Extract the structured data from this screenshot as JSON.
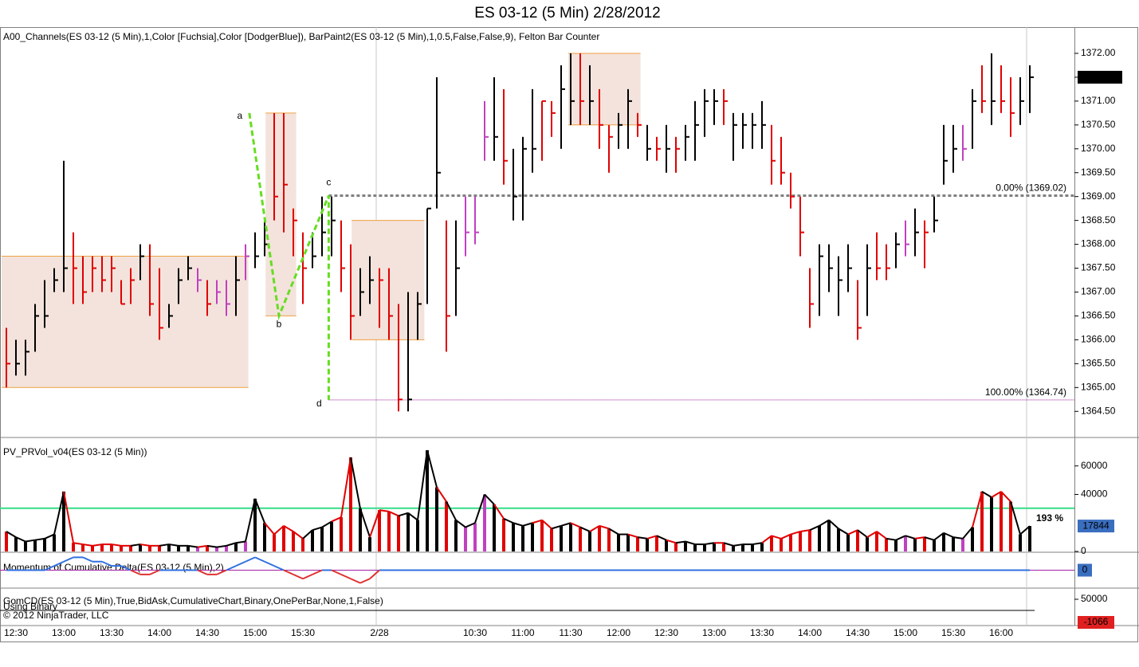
{
  "chart_data": [
    {
      "type": "ohlc",
      "title": "ES 03-12 (5 Min)  2/28/2012",
      "subtitle": "A00_Channels(ES  03-12  (5  Min),1,Color  [Fuchsia],Color  [DodgerBlue]),  BarPaint2(ES  03-12  (5  Min),1,0.5,False,False,9),  Felton  Bar  Counter",
      "categories": [
        null,
        "12:30",
        null,
        null,
        null,
        null,
        "13:00",
        null,
        null,
        null,
        null,
        "13:30",
        null,
        null,
        null,
        null,
        "14:00",
        null,
        null,
        null,
        null,
        "14:30",
        null,
        null,
        null,
        null,
        "15:00",
        null,
        null,
        null,
        null,
        "15:30",
        null,
        null,
        null,
        null,
        null,
        null,
        null,
        "2/28",
        null,
        null,
        null,
        null,
        null,
        null,
        null,
        null,
        null,
        "10:30",
        null,
        null,
        null,
        null,
        "11:00",
        null,
        null,
        null,
        null,
        "11:30",
        null,
        null,
        null,
        null,
        "12:00",
        null,
        null,
        null,
        null,
        "12:30",
        null,
        null,
        null,
        null,
        "13:00",
        null,
        null,
        null,
        null,
        "13:30",
        null,
        null,
        null,
        null,
        "14:00",
        null,
        null,
        null,
        null,
        "14:30",
        null,
        null,
        null,
        null,
        "15:00",
        null,
        null,
        null,
        null,
        "15:30",
        null,
        null,
        null,
        null,
        "16:00",
        null,
        null,
        null
      ],
      "high": [
        1366.25,
        1366,
        1366,
        1366.75,
        1367.25,
        1367.5,
        1369.75,
        1368.25,
        1367.75,
        1367.75,
        1367.75,
        1367.75,
        1367.25,
        1367.5,
        1368,
        1368,
        1367.5,
        1366.75,
        1367.5,
        1367.75,
        1367.5,
        1367.25,
        1367.25,
        1367.25,
        1367.75,
        1368,
        1368.25,
        1368.5,
        1370.75,
        1370.75,
        1368.75,
        1368.25,
        1368.25,
        1369,
        1369,
        1368.5,
        1368,
        1367.5,
        1367.75,
        1367.5,
        1367.5,
        1366.75,
        1367,
        1367,
        1368.75,
        1371.5,
        1368.5,
        1368.5,
        1369,
        1369,
        1371,
        1371.5,
        1371.25,
        1370,
        1370.25,
        1371.25,
        1371,
        1371,
        1371.75,
        1372,
        1372,
        1371.75,
        1371.25,
        1370.5,
        1370.75,
        1371.25,
        1370.75,
        1370.5,
        1370.25,
        1370.5,
        1370.25,
        1370.5,
        1371,
        1371.25,
        1371.25,
        1371.25,
        1370.75,
        1370.75,
        1370.75,
        1371,
        1370.5,
        1370.25,
        1369.5,
        1369,
        1367.5,
        1368,
        1368,
        1367.75,
        1368,
        1367.25,
        1368,
        1368.25,
        1368,
        1368.25,
        1368.5,
        1368.75,
        1368.5,
        1369,
        1370.5,
        1370.5,
        1370.5,
        1371.25,
        1371.75,
        1372,
        1371.75,
        1371.5,
        1371.5,
        1371.75
      ],
      "low": [
        1365,
        1365.25,
        1365.25,
        1365.75,
        1366.25,
        1367,
        1367,
        1366.75,
        1366.75,
        1367,
        1367,
        1367,
        1366.75,
        1366.75,
        1367.25,
        1366.5,
        1366,
        1366.25,
        1366.75,
        1367.25,
        1367,
        1366.5,
        1366.75,
        1366.5,
        1366.5,
        1367.25,
        1367.5,
        1367.75,
        1368.5,
        1368.25,
        1367.75,
        1366.75,
        1367.5,
        1367.75,
        1367.75,
        1367,
        1366,
        1366.5,
        1366.75,
        1366.25,
        1366,
        1364.5,
        1364.5,
        1366,
        1366.75,
        1368.75,
        1365.75,
        1366.5,
        1367.75,
        1368,
        1369.75,
        1369.75,
        1369.25,
        1368.5,
        1368.5,
        1369.5,
        1369.75,
        1370.25,
        1370,
        1370.5,
        1370.5,
        1370.5,
        1370,
        1369.5,
        1370,
        1370,
        1370.25,
        1369.75,
        1369.75,
        1369.5,
        1369.5,
        1369.75,
        1369.75,
        1370.25,
        1370.5,
        1370.5,
        1369.75,
        1370,
        1370,
        1370,
        1369.25,
        1369.25,
        1368.75,
        1367.75,
        1366.25,
        1366.5,
        1367,
        1366.5,
        1367,
        1366,
        1366.5,
        1367.25,
        1367.25,
        1367.5,
        1367.75,
        1367.75,
        1367.5,
        1368.25,
        1369.25,
        1369.5,
        1369.75,
        1370,
        1370.75,
        1370.5,
        1370.75,
        1370.25,
        1370.5,
        1370.75
      ],
      "close": [
        1365.5,
        1365.5,
        1365.75,
        1366.5,
        1366.5,
        1367.25,
        1367.5,
        1367.5,
        1367,
        1367.5,
        1367.25,
        1367.5,
        1366.75,
        1367.25,
        1367.75,
        1366.75,
        1366.25,
        1366.5,
        1367.25,
        1367.5,
        1367.25,
        1366.75,
        1367,
        1366.75,
        1367.25,
        1367.75,
        1367.75,
        1368,
        1369,
        1369.25,
        1368.5,
        1367.5,
        1367.75,
        1368.25,
        1368.5,
        1367.5,
        1366.5,
        1367,
        1367.25,
        1367.25,
        1366.5,
        1364.75,
        1364.75,
        1366.75,
        1368.75,
        1369.5,
        1366.5,
        1367.5,
        1368.25,
        1368.25,
        1370.25,
        1370.25,
        1369.75,
        1369,
        1370,
        1370,
        1371,
        1370.75,
        1371.25,
        1371,
        1371,
        1371,
        1370.5,
        1370.25,
        1370.5,
        1371,
        1370.5,
        1370,
        1370,
        1370,
        1370,
        1370.25,
        1370.5,
        1371,
        1371,
        1371,
        1370.5,
        1370.5,
        1370.5,
        1370.5,
        1369.75,
        1369.5,
        1369,
        1368.25,
        1366.75,
        1367.75,
        1367.5,
        1367.25,
        1367.5,
        1366.25,
        1367.5,
        1367.5,
        1367.5,
        1368,
        1368,
        1368.25,
        1368.25,
        1368.5,
        1369.75,
        1370,
        1370,
        1371,
        1371,
        1371,
        1371,
        1370.75,
        1371,
        1371.5
      ],
      "colors": [
        "#e00000",
        "#000000",
        "#000000",
        "#000000",
        "#000000",
        "#000000",
        "#000000",
        "#e00000",
        "#e00000",
        "#e00000",
        "#e00000",
        "#e00000",
        "#e00000",
        "#e00000",
        "#000000",
        "#e00000",
        "#e00000",
        "#000000",
        "#000000",
        "#000000",
        "#c040c0",
        "#e00000",
        "#c040c0",
        "#c040c0",
        "#000000",
        "#c040c0",
        "#000000",
        "#000000",
        "#e00000",
        "#e00000",
        "#e00000",
        "#e00000",
        "#000000",
        "#000000",
        "#000000",
        "#e00000",
        "#e00000",
        "#000000",
        "#000000",
        "#e00000",
        "#e00000",
        "#e00000",
        "#000000",
        "#000000",
        "#000000",
        "#000000",
        "#e00000",
        "#000000",
        "#c040c0",
        "#c040c0",
        "#c040c0",
        "#000000",
        "#e00000",
        "#000000",
        "#000000",
        "#000000",
        "#e00000",
        "#e00000",
        "#000000",
        "#000000",
        "#e00000",
        "#000000",
        "#e00000",
        "#e00000",
        "#000000",
        "#000000",
        "#e00000",
        "#000000",
        "#e00000",
        "#000000",
        "#e00000",
        "#000000",
        "#000000",
        "#000000",
        "#000000",
        "#e00000",
        "#000000",
        "#000000",
        "#000000",
        "#000000",
        "#e00000",
        "#e00000",
        "#e00000",
        "#e00000",
        "#e00000",
        "#000000",
        "#000000",
        "#000000",
        "#000000",
        "#e00000",
        "#000000",
        "#e00000",
        "#e00000",
        "#000000",
        "#c040c0",
        "#000000",
        "#e00000",
        "#000000",
        "#000000",
        "#000000",
        "#c040c0",
        "#000000",
        "#e00000",
        "#000000",
        "#e00000",
        "#e00000",
        "#000000",
        "#000000"
      ],
      "ylim": [
        1363.97,
        1372.55
      ],
      "yticks": [
        {
          "value": 1364.5,
          "label": "1364.50"
        },
        {
          "value": 1365,
          "label": "1365.00"
        },
        {
          "value": 1365.5,
          "label": "1365.50"
        },
        {
          "value": 1366,
          "label": "1366.00"
        },
        {
          "value": 1366.5,
          "label": "1366.50"
        },
        {
          "value": 1367,
          "label": "1367.00"
        },
        {
          "value": 1367.5,
          "label": "1367.50"
        },
        {
          "value": 1368,
          "label": "1368.00"
        },
        {
          "value": 1368.5,
          "label": "1368.50"
        },
        {
          "value": 1369,
          "label": "1369.00"
        },
        {
          "value": 1369.5,
          "label": "1369.50"
        },
        {
          "value": 1370,
          "label": "1370.00"
        },
        {
          "value": 1370.5,
          "label": "1370.50"
        },
        {
          "value": 1371,
          "label": "1371.00"
        },
        {
          "value": 1371.5,
          "label": "1371.50"
        },
        {
          "value": 1372,
          "label": "1372.00"
        }
      ],
      "last_label": "1371.50",
      "channels": [
        {
          "start": -0.5,
          "end": 25.3,
          "low": 1365,
          "high": 1367.75
        },
        {
          "start": 27.1,
          "end": 30.3,
          "low": 1366.5,
          "high": 1370.75
        },
        {
          "start": 36.1,
          "end": 43.7,
          "low": 1366,
          "high": 1368.5
        },
        {
          "start": 58.75,
          "end": 66.3,
          "low": 1370.5,
          "high": 1372
        }
      ],
      "zigzag": [
        {
          "label": "a",
          "x": 25.4,
          "y": 1370.75
        },
        {
          "label": "b",
          "x": 28.5,
          "y": 1366.5
        },
        {
          "label": "c",
          "x": 33.7,
          "y": 1369.02
        },
        {
          "label": "d",
          "x": 33.7,
          "y": 1364.74
        }
      ],
      "levels": [
        {
          "value": 1369.02,
          "label": "0.00% (1369.02)",
          "color": "#808080"
        },
        {
          "value": 1364.74,
          "label": "100.00% (1364.74)",
          "color": "#a020a0"
        }
      ]
    },
    {
      "type": "bar",
      "title": "PV_PRVol_v04(ES 03-12 (5 Min))",
      "values": [
        14000,
        10000,
        7000,
        8000,
        9000,
        12000,
        42000,
        6000,
        5000,
        4000,
        5000,
        5000,
        4000,
        4000,
        5000,
        4000,
        4000,
        5000,
        4000,
        4000,
        3000,
        4000,
        3000,
        4000,
        6000,
        7000,
        37000,
        20000,
        12000,
        18000,
        14000,
        9000,
        15000,
        17000,
        21000,
        24000,
        66000,
        30000,
        10000,
        29000,
        28000,
        25000,
        27000,
        22000,
        71000,
        45000,
        35000,
        22000,
        17000,
        20000,
        40000,
        33000,
        23000,
        20000,
        18000,
        20000,
        22000,
        16000,
        18000,
        20000,
        17000,
        14000,
        18000,
        16000,
        12000,
        12000,
        10000,
        9000,
        11000,
        8000,
        6000,
        7000,
        5000,
        5000,
        6000,
        6000,
        4000,
        5000,
        5000,
        6000,
        11000,
        9000,
        12000,
        14000,
        15000,
        18000,
        22000,
        16000,
        12000,
        15000,
        10000,
        14000,
        9000,
        8000,
        11000,
        9000,
        10000,
        8000,
        13000,
        10000,
        9000,
        17000,
        42000,
        38000,
        42000,
        35000,
        12000,
        17844
      ],
      "ylim": [
        0,
        79400
      ],
      "yticks": [
        0,
        40000,
        60000
      ],
      "threshold": 30300,
      "threshold_color": "#33dd88",
      "annotation": "193 %"
    },
    {
      "type": "line",
      "title": "Momentum of Cumulative Delta(ES 03-12 (5 Min),2)",
      "values": [
        0,
        0,
        0,
        0,
        0,
        1,
        2,
        3,
        3,
        2,
        2,
        1,
        1,
        0,
        -1,
        -1,
        0,
        0,
        0,
        0,
        0,
        -1,
        -1,
        0,
        1,
        2,
        3,
        2,
        1,
        0,
        -1,
        -2,
        -1,
        0,
        0,
        -1,
        -2,
        -3,
        -2,
        0,
        0,
        0,
        0,
        0,
        0,
        0,
        0,
        0,
        0,
        0,
        0,
        0,
        0,
        0,
        0,
        0,
        0,
        0,
        0,
        0,
        0,
        0,
        0,
        0,
        0,
        0,
        0,
        0,
        0,
        0,
        0,
        0,
        0,
        0,
        0,
        0,
        0,
        0,
        0,
        0,
        0,
        0,
        0,
        0,
        0,
        0,
        0,
        0,
        0,
        0,
        0,
        0,
        0,
        0,
        0,
        0,
        0,
        0,
        0,
        0,
        0,
        0,
        0,
        0,
        0,
        0,
        0,
        0
      ],
      "ylim": [
        -4,
        4
      ],
      "last_value": 0
    },
    {
      "type": "line",
      "title": "GomCD(ES 03-12 (5 Min),True,BidAsk,CumulativeChart,Binary,OnePerBar,None,1,False)",
      "note": "Using Binary",
      "copyright": "© 2012 NinjaTrader, LLC",
      "ylim": [
        -6350,
        72900
      ],
      "yticks": [
        50000
      ],
      "last_value": -1066
    }
  ]
}
